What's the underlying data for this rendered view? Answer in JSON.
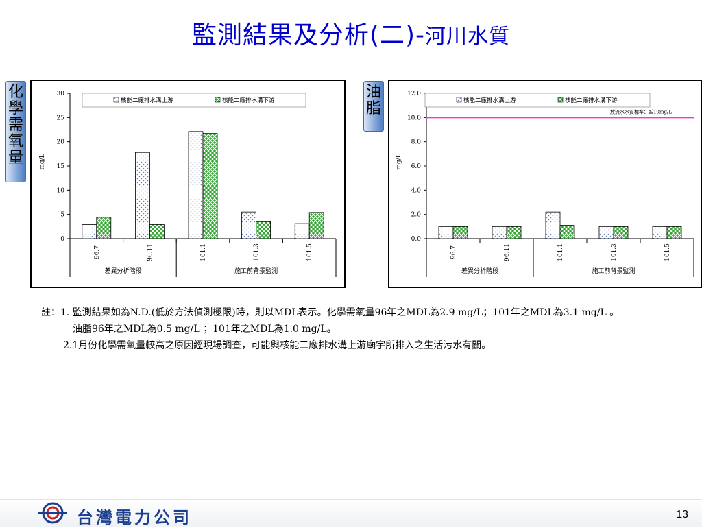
{
  "title": {
    "main": "監測結果及分析(二)-",
    "sub": "河川水質"
  },
  "side_labels": {
    "left": "化學需氧量",
    "right": "油脂"
  },
  "colors": {
    "title": "#0000cc",
    "upstream_fill": "#ffffff",
    "downstream_fill": "#33a633",
    "limit_line": "#ff33cc"
  },
  "chart_data": [
    {
      "type": "bar",
      "ylabel": "mg/L",
      "ylim": [
        0,
        30
      ],
      "yticks": [
        "0",
        "5",
        "10",
        "15",
        "20",
        "25",
        "30"
      ],
      "categories": [
        "96.7",
        "96.11",
        "101.1",
        "101.3",
        "101.5"
      ],
      "groups": [
        {
          "label": "差異分析階段"
        },
        {
          "label": "施工前背景監測"
        }
      ],
      "series": [
        {
          "name": "核能二廠排水溝上游",
          "values": [
            2.9,
            17.8,
            22.1,
            5.5,
            3.1
          ]
        },
        {
          "name": "核能二廠排水溝下游",
          "values": [
            4.4,
            2.9,
            21.7,
            3.5,
            5.4
          ]
        }
      ],
      "legend": "top"
    },
    {
      "type": "bar",
      "ylabel": "mg/L",
      "ylim": [
        0,
        12
      ],
      "yticks": [
        "0.0",
        "2.0",
        "4.0",
        "6.0",
        "8.0",
        "10.0",
        "12.0"
      ],
      "categories": [
        "96.7",
        "96.11",
        "101.1",
        "101.3",
        "101.5"
      ],
      "groups": [
        {
          "label": "差異分析階段"
        },
        {
          "label": "施工前背景監測"
        }
      ],
      "series": [
        {
          "name": "核能二廠排水溝上游",
          "values": [
            1.0,
            1.0,
            2.2,
            1.0,
            1.0
          ]
        },
        {
          "name": "核能二廠排水溝下游",
          "values": [
            1.0,
            1.0,
            1.1,
            1.0,
            1.0
          ]
        }
      ],
      "reference_line": {
        "value": 10,
        "label": "放流水水質標準：≦10mg/L"
      },
      "legend": "top"
    }
  ],
  "notes": {
    "line1": "註：1. 監測結果如為N.D.(低於方法偵測極限)時，則以MDL表示。化學需氧量96年之MDL為2.9 mg/L；101年之MDL為3.1 mg/L 。",
    "line2": "油脂96年之MDL為0.5 mg/L ；101年之MDL為1.0 mg/L。",
    "line3": "2.1月份化學需氧量較高之原因經現場調查，可能與核能二廠排水溝上游廟宇所排入之生活污水有關。"
  },
  "footer": {
    "company": "台灣電力公司",
    "page": "13"
  }
}
